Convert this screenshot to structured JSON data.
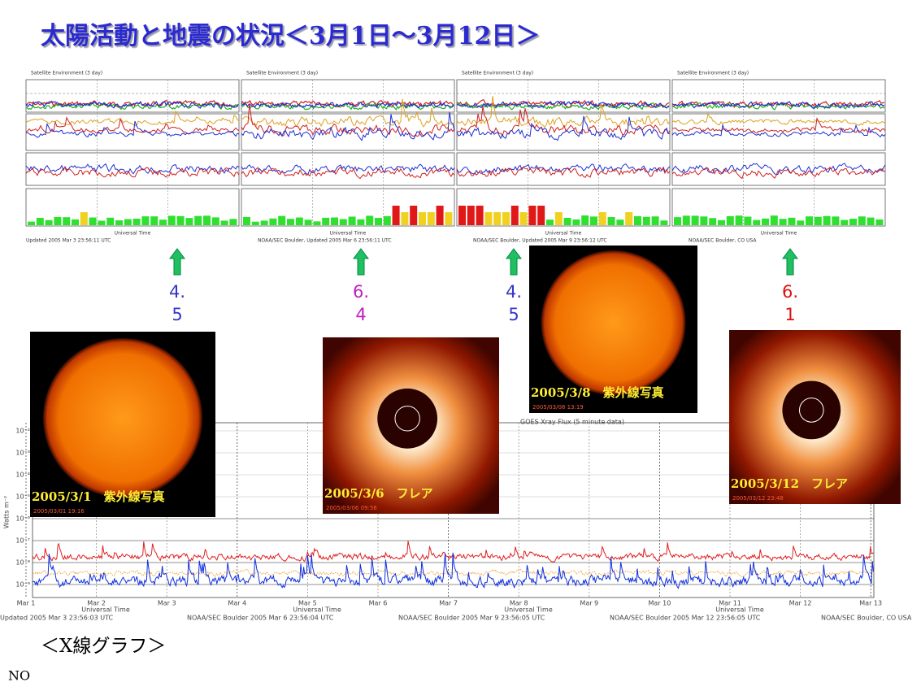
{
  "title": "太陽活動と地震の状況＜3月1日～3月12日＞",
  "satellite_panels": [
    {
      "header": "Satellite Environment (3 day)",
      "footer": "Updated 2005 Mar 3 23:56:11 UTC"
    },
    {
      "header": "Satellite Environment (3 day)",
      "footer": "NOAA/SEC Boulder, Updated 2005 Mar 6 23:56:11 UTC"
    },
    {
      "header": "Satellite Environment (3 day)",
      "footer": "NOAA/SEC Boulder, Updated 2005 Mar 9 23:56:12 UTC"
    },
    {
      "header": "Satellite Environment (3 day)",
      "footer": "NOAA/SEC Boulder, CO USA"
    }
  ],
  "satellite_axis_title": "Universal Time",
  "events": [
    {
      "magnitude": [
        "4.",
        "5"
      ],
      "color": "#3535c8"
    },
    {
      "magnitude": [
        "6.",
        "4"
      ],
      "color": "#c020c0"
    },
    {
      "magnitude": [
        "4.",
        "5"
      ],
      "color": "#3535c8"
    },
    {
      "magnitude": [
        "6.",
        "1"
      ],
      "color": "#e01010"
    }
  ],
  "images": [
    {
      "caption": "2005/3/1　紫外線写真",
      "timestamp": "2005/03/01 19:16"
    },
    {
      "caption": "2005/3/6　フレア",
      "timestamp": "2005/03/06 09:56"
    },
    {
      "caption": "2005/3/8　紫外線写真",
      "timestamp": "2005/03/08 13:19"
    },
    {
      "caption": "2005/3/12　フレア",
      "timestamp": "2005/03/12 23:48"
    }
  ],
  "xray_chart": {
    "title": "GOES Xray Flux (5 minute data)",
    "axis_label": "Watts m⁻²",
    "y_labels": [
      "10⁻²",
      "10⁻³",
      "10⁻⁴",
      "10⁻⁵",
      "10⁻⁶",
      "10⁻⁷",
      "10⁻⁸",
      "10⁻⁹"
    ],
    "x_labels": [
      "Mar 1",
      "Mar 2",
      "Mar 3",
      "Mar 4",
      "Mar 5",
      "Mar 6",
      "Mar 7",
      "Mar 8",
      "Mar 9",
      "Mar 10",
      "Mar 11",
      "Mar 12",
      "Mar 13"
    ],
    "x_axis_title": "Universal Time",
    "footers": [
      "Updated 2005 Mar 3 23:56:03 UTC",
      "NOAA/SEC Boulder 2005 Mar 6 23:56:04 UTC",
      "NOAA/SEC Boulder 2005 Mar 9 23:56:05 UTC",
      "NOAA/SEC Boulder 2005 Mar 12 23:56:05 UTC",
      "NOAA/SEC Boulder, CO USA"
    ]
  },
  "section_label": "＜X線グラフ＞",
  "note": "NO"
}
